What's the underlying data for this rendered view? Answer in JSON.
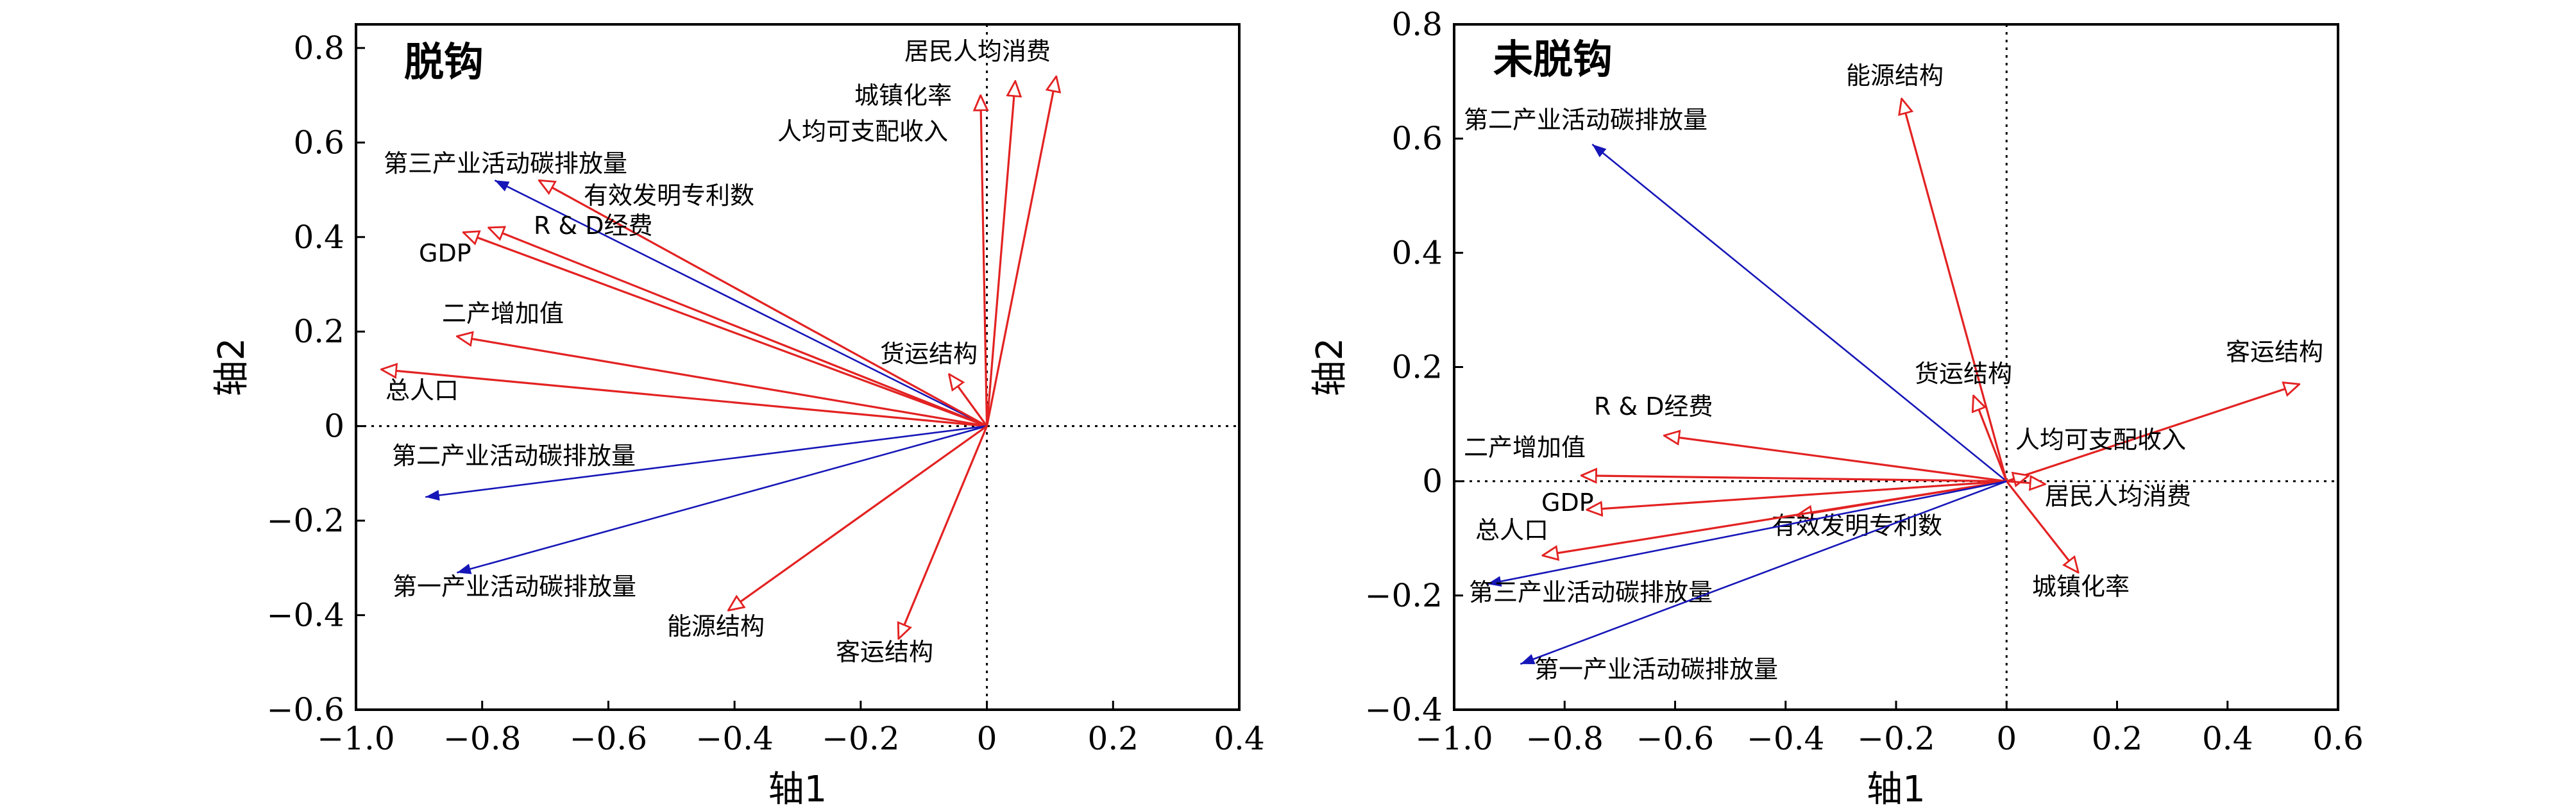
{
  "colors": {
    "red": "#e32222",
    "blue": "#1616b8",
    "frame": "#000000"
  },
  "chart_data": [
    {
      "type": "biplot",
      "title": "脱钩",
      "xlabel": "轴1",
      "ylabel": "轴2",
      "xlim": [
        -1.0,
        0.4
      ],
      "ylim": [
        -0.6,
        0.85
      ],
      "xticks": [
        "−1.0",
        "−0.8",
        "−0.6",
        "−0.4",
        "−0.2",
        "0",
        "0.2",
        "0.4"
      ],
      "yticks": [
        "−0.6",
        "−0.4",
        "−0.2",
        "0",
        "0.2",
        "0.4",
        "0.6",
        "0.8"
      ],
      "vectors": [
        {
          "name": "居民人均消费",
          "x": 0.11,
          "y": 0.74,
          "color": "red",
          "head": "open"
        },
        {
          "name": "城镇化率",
          "x": 0.045,
          "y": 0.73,
          "color": "red",
          "head": "open"
        },
        {
          "name": "人均可支配收入",
          "x": -0.01,
          "y": 0.7,
          "color": "red",
          "head": "open"
        },
        {
          "name": "第三产业活动碳排放量",
          "x": -0.78,
          "y": 0.52,
          "color": "blue",
          "head": "filled"
        },
        {
          "name": "有效发明专利数",
          "x": -0.71,
          "y": 0.52,
          "color": "red",
          "head": "open"
        },
        {
          "name": "R & D经费",
          "x": -0.79,
          "y": 0.42,
          "color": "red",
          "head": "open"
        },
        {
          "name": "GDP",
          "x": -0.83,
          "y": 0.41,
          "color": "red",
          "head": "open"
        },
        {
          "name": "二产增加值",
          "x": -0.84,
          "y": 0.19,
          "color": "red",
          "head": "open"
        },
        {
          "name": "总人口",
          "x": -0.96,
          "y": 0.12,
          "color": "red",
          "head": "open"
        },
        {
          "name": "货运结构",
          "x": -0.06,
          "y": 0.11,
          "color": "red",
          "head": "open"
        },
        {
          "name": "第二产业活动碳排放量",
          "x": -0.89,
          "y": -0.15,
          "color": "blue",
          "head": "filled"
        },
        {
          "name": "第一产业活动碳排放量",
          "x": -0.84,
          "y": -0.31,
          "color": "blue",
          "head": "filled"
        },
        {
          "name": "能源结构",
          "x": -0.41,
          "y": -0.39,
          "color": "red",
          "head": "open"
        },
        {
          "name": "客运结构",
          "x": -0.14,
          "y": -0.45,
          "color": "red",
          "head": "open"
        }
      ]
    },
    {
      "type": "biplot",
      "title": "未脱钩",
      "xlabel": "轴1",
      "ylabel": "轴2",
      "xlim": [
        -1.0,
        0.6
      ],
      "ylim": [
        -0.4,
        0.8
      ],
      "xticks": [
        "−1.0",
        "−0.8",
        "−0.6",
        "−0.4",
        "−0.2",
        "0",
        "0.2",
        "0.4",
        "0.6"
      ],
      "yticks": [
        "−0.4",
        "−0.2",
        "0",
        "0.2",
        "0.4",
        "0.6",
        "0.8"
      ],
      "vectors": [
        {
          "name": "能源结构",
          "x": -0.19,
          "y": 0.67,
          "color": "red",
          "head": "open"
        },
        {
          "name": "第二产业活动碳排放量",
          "x": -0.75,
          "y": 0.59,
          "color": "blue",
          "head": "filled"
        },
        {
          "name": "客运结构",
          "x": 0.53,
          "y": 0.17,
          "color": "red",
          "head": "open"
        },
        {
          "name": "货运结构",
          "x": -0.06,
          "y": 0.15,
          "color": "red",
          "head": "open"
        },
        {
          "name": "R & D经费",
          "x": -0.62,
          "y": 0.08,
          "color": "red",
          "head": "open"
        },
        {
          "name": "人均可支配收入",
          "x": 0.04,
          "y": 0.01,
          "color": "red",
          "head": "open"
        },
        {
          "name": "二产增加值",
          "x": -0.77,
          "y": 0.01,
          "color": "red",
          "head": "open"
        },
        {
          "name": "居民人均消费",
          "x": 0.07,
          "y": -0.005,
          "color": "red",
          "head": "open"
        },
        {
          "name": "GDP",
          "x": -0.76,
          "y": -0.05,
          "color": "red",
          "head": "open"
        },
        {
          "name": "有效发明专利数",
          "x": -0.38,
          "y": -0.06,
          "color": "red",
          "head": "open"
        },
        {
          "name": "总人口",
          "x": -0.84,
          "y": -0.13,
          "color": "red",
          "head": "open"
        },
        {
          "name": "城镇化率",
          "x": 0.13,
          "y": -0.16,
          "color": "red",
          "head": "open"
        },
        {
          "name": "第三产业活动碳排放量",
          "x": -0.94,
          "y": -0.18,
          "color": "blue",
          "head": "filled"
        },
        {
          "name": "第一产业活动碳排放量",
          "x": -0.88,
          "y": -0.32,
          "color": "blue",
          "head": "filled"
        }
      ]
    }
  ]
}
